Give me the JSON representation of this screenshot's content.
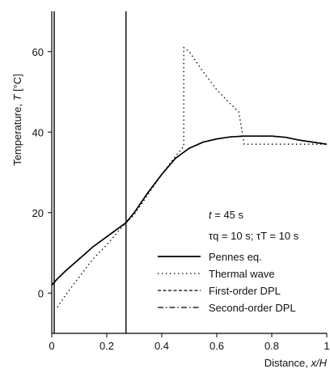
{
  "chart_data": {
    "type": "line",
    "xlabel_prefix": "Distance, ",
    "xlabel_var": "x/H",
    "ylabel_prefix": "Temperature, ",
    "ylabel_var": "T",
    "ylabel_unit": " [°C]",
    "xlim": [
      0,
      1
    ],
    "ylim": [
      -10,
      70
    ],
    "x_ticks": [
      0,
      0.2,
      0.4,
      0.6,
      0.8,
      1
    ],
    "x_tick_labels": [
      "0",
      "0.2",
      "0.4",
      "0.6",
      "0.8",
      "1"
    ],
    "y_ticks": [
      0,
      20,
      40,
      60
    ],
    "y_tick_labels": [
      "0",
      "20",
      "40",
      "60"
    ],
    "vlines": [
      0.0,
      0.27
    ],
    "annotation_time": "t = 45 s",
    "annotation_time_var": "t",
    "annotation_time_value": " = 45 s",
    "annotation_tau": "τq = 10 s; τT = 10 s",
    "legend_position": "bottom-right",
    "series": [
      {
        "name": "Pennes eq.",
        "style": "solid",
        "x": [
          0,
          0.02,
          0.05,
          0.1,
          0.15,
          0.2,
          0.25,
          0.27,
          0.3,
          0.35,
          0.4,
          0.45,
          0.5,
          0.55,
          0.6,
          0.65,
          0.7,
          0.75,
          0.8,
          0.85,
          0.9,
          0.95,
          1.0
        ],
        "y": [
          2,
          3.5,
          5.5,
          8.5,
          11.5,
          14,
          16.5,
          17.5,
          20,
          25,
          29.5,
          33.5,
          36,
          37.5,
          38.3,
          38.8,
          39,
          39,
          39,
          38.7,
          38,
          37.5,
          37
        ]
      },
      {
        "name": "Thermal wave",
        "style": "dotted",
        "x": [
          0.02,
          0.05,
          0.1,
          0.15,
          0.2,
          0.25,
          0.3,
          0.35,
          0.4,
          0.45,
          0.48,
          0.48,
          0.5,
          0.55,
          0.6,
          0.65,
          0.68,
          0.7,
          0.8,
          0.9,
          1.0
        ],
        "y": [
          -3.5,
          -0.5,
          4,
          8.5,
          12,
          16,
          19.5,
          24.5,
          29.5,
          34,
          36.5,
          61,
          60,
          55,
          50.5,
          47,
          45,
          37,
          37,
          37,
          37
        ]
      },
      {
        "name": "First-order DPL",
        "style": "dashed",
        "x": [
          0,
          0.02,
          0.05,
          0.1,
          0.15,
          0.2,
          0.25,
          0.27,
          0.3,
          0.35,
          0.4,
          0.45,
          0.5,
          0.55,
          0.6,
          0.65,
          0.7,
          0.75,
          0.8,
          0.85,
          0.9,
          0.95,
          1.0
        ],
        "y": [
          2,
          3.5,
          5.5,
          8.5,
          11.5,
          14,
          16.5,
          17.5,
          20,
          25,
          29.5,
          33.5,
          36,
          37.5,
          38.3,
          38.8,
          39,
          39,
          39,
          38.7,
          38,
          37.5,
          37
        ]
      },
      {
        "name": "Second-order DPL",
        "style": "dashdot",
        "x": [
          0,
          0.02,
          0.05,
          0.1,
          0.15,
          0.2,
          0.25,
          0.27,
          0.3,
          0.35,
          0.4,
          0.45,
          0.5,
          0.55,
          0.6,
          0.65,
          0.7,
          0.75,
          0.8,
          0.85,
          0.9,
          0.95,
          1.0
        ],
        "y": [
          2,
          3.5,
          5.5,
          8.5,
          11.5,
          14,
          16.5,
          17.5,
          20,
          25,
          29.5,
          33.5,
          36,
          37.5,
          38.3,
          38.8,
          39,
          39,
          39,
          38.7,
          38,
          37.5,
          37
        ]
      }
    ]
  }
}
